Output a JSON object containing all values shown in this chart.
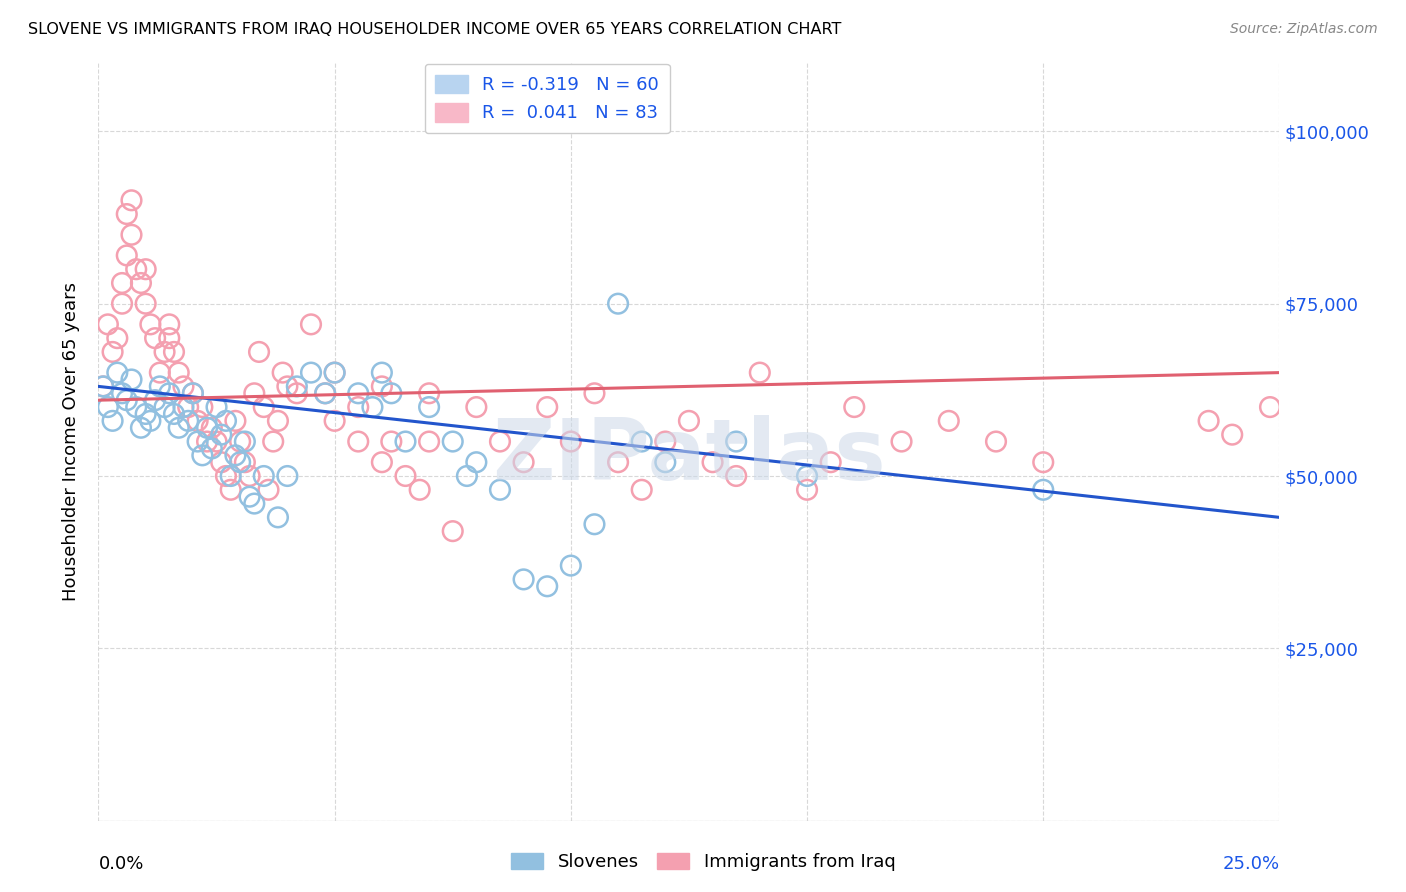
{
  "title": "SLOVENE VS IMMIGRANTS FROM IRAQ HOUSEHOLDER INCOME OVER 65 YEARS CORRELATION CHART",
  "source": "Source: ZipAtlas.com",
  "ylabel": "Householder Income Over 65 years",
  "xlim": [
    0.0,
    0.25
  ],
  "ylim": [
    0,
    110000
  ],
  "yticks": [
    0,
    25000,
    50000,
    75000,
    100000
  ],
  "ytick_labels": [
    "",
    "$25,000",
    "$50,000",
    "$75,000",
    "$100,000"
  ],
  "watermark": "ZIPatlas",
  "slovene_color": "#92c0e0",
  "iraq_color": "#f4a0b0",
  "slovene_line_color": "#2255cc",
  "iraq_line_color": "#e06070",
  "background_color": "#ffffff",
  "grid_color": "#d8d8d8",
  "slovene_scatter": [
    [
      0.001,
      63000
    ],
    [
      0.002,
      60000
    ],
    [
      0.003,
      58000
    ],
    [
      0.004,
      65000
    ],
    [
      0.005,
      62000
    ],
    [
      0.006,
      61000
    ],
    [
      0.007,
      64000
    ],
    [
      0.008,
      60000
    ],
    [
      0.009,
      57000
    ],
    [
      0.01,
      59000
    ],
    [
      0.011,
      58000
    ],
    [
      0.012,
      61000
    ],
    [
      0.013,
      63000
    ],
    [
      0.014,
      60000
    ],
    [
      0.015,
      62000
    ],
    [
      0.016,
      59000
    ],
    [
      0.017,
      57000
    ],
    [
      0.018,
      60000
    ],
    [
      0.019,
      58000
    ],
    [
      0.02,
      62000
    ],
    [
      0.021,
      55000
    ],
    [
      0.022,
      53000
    ],
    [
      0.023,
      57000
    ],
    [
      0.024,
      54000
    ],
    [
      0.025,
      60000
    ],
    [
      0.026,
      56000
    ],
    [
      0.027,
      58000
    ],
    [
      0.028,
      50000
    ],
    [
      0.029,
      53000
    ],
    [
      0.03,
      52000
    ],
    [
      0.031,
      55000
    ],
    [
      0.032,
      47000
    ],
    [
      0.033,
      46000
    ],
    [
      0.035,
      50000
    ],
    [
      0.038,
      44000
    ],
    [
      0.04,
      50000
    ],
    [
      0.042,
      63000
    ],
    [
      0.045,
      65000
    ],
    [
      0.048,
      62000
    ],
    [
      0.05,
      65000
    ],
    [
      0.055,
      62000
    ],
    [
      0.058,
      60000
    ],
    [
      0.06,
      65000
    ],
    [
      0.062,
      62000
    ],
    [
      0.065,
      55000
    ],
    [
      0.07,
      60000
    ],
    [
      0.075,
      55000
    ],
    [
      0.078,
      50000
    ],
    [
      0.08,
      52000
    ],
    [
      0.085,
      48000
    ],
    [
      0.09,
      35000
    ],
    [
      0.095,
      34000
    ],
    [
      0.1,
      37000
    ],
    [
      0.105,
      43000
    ],
    [
      0.11,
      75000
    ],
    [
      0.115,
      55000
    ],
    [
      0.12,
      52000
    ],
    [
      0.135,
      55000
    ],
    [
      0.15,
      50000
    ],
    [
      0.2,
      48000
    ]
  ],
  "iraq_scatter": [
    [
      0.001,
      63000
    ],
    [
      0.002,
      72000
    ],
    [
      0.003,
      68000
    ],
    [
      0.004,
      70000
    ],
    [
      0.005,
      75000
    ],
    [
      0.005,
      78000
    ],
    [
      0.006,
      82000
    ],
    [
      0.006,
      88000
    ],
    [
      0.007,
      90000
    ],
    [
      0.007,
      85000
    ],
    [
      0.008,
      80000
    ],
    [
      0.009,
      78000
    ],
    [
      0.01,
      75000
    ],
    [
      0.01,
      80000
    ],
    [
      0.011,
      72000
    ],
    [
      0.012,
      70000
    ],
    [
      0.013,
      65000
    ],
    [
      0.014,
      68000
    ],
    [
      0.015,
      72000
    ],
    [
      0.015,
      70000
    ],
    [
      0.016,
      68000
    ],
    [
      0.017,
      65000
    ],
    [
      0.018,
      63000
    ],
    [
      0.019,
      60000
    ],
    [
      0.02,
      62000
    ],
    [
      0.021,
      58000
    ],
    [
      0.022,
      60000
    ],
    [
      0.023,
      55000
    ],
    [
      0.024,
      57000
    ],
    [
      0.025,
      55000
    ],
    [
      0.026,
      52000
    ],
    [
      0.027,
      50000
    ],
    [
      0.028,
      48000
    ],
    [
      0.029,
      58000
    ],
    [
      0.03,
      55000
    ],
    [
      0.031,
      52000
    ],
    [
      0.032,
      50000
    ],
    [
      0.033,
      62000
    ],
    [
      0.034,
      68000
    ],
    [
      0.035,
      60000
    ],
    [
      0.036,
      48000
    ],
    [
      0.037,
      55000
    ],
    [
      0.038,
      58000
    ],
    [
      0.039,
      65000
    ],
    [
      0.04,
      63000
    ],
    [
      0.042,
      62000
    ],
    [
      0.045,
      72000
    ],
    [
      0.048,
      62000
    ],
    [
      0.05,
      65000
    ],
    [
      0.05,
      58000
    ],
    [
      0.055,
      60000
    ],
    [
      0.055,
      55000
    ],
    [
      0.06,
      63000
    ],
    [
      0.06,
      52000
    ],
    [
      0.062,
      55000
    ],
    [
      0.065,
      50000
    ],
    [
      0.068,
      48000
    ],
    [
      0.07,
      62000
    ],
    [
      0.07,
      55000
    ],
    [
      0.075,
      42000
    ],
    [
      0.08,
      60000
    ],
    [
      0.085,
      55000
    ],
    [
      0.09,
      52000
    ],
    [
      0.095,
      60000
    ],
    [
      0.1,
      55000
    ],
    [
      0.105,
      62000
    ],
    [
      0.11,
      52000
    ],
    [
      0.115,
      48000
    ],
    [
      0.12,
      55000
    ],
    [
      0.125,
      58000
    ],
    [
      0.13,
      52000
    ],
    [
      0.135,
      50000
    ],
    [
      0.14,
      65000
    ],
    [
      0.15,
      48000
    ],
    [
      0.155,
      52000
    ],
    [
      0.16,
      60000
    ],
    [
      0.17,
      55000
    ],
    [
      0.18,
      58000
    ],
    [
      0.19,
      55000
    ],
    [
      0.2,
      52000
    ],
    [
      0.235,
      58000
    ],
    [
      0.24,
      56000
    ],
    [
      0.248,
      60000
    ]
  ]
}
